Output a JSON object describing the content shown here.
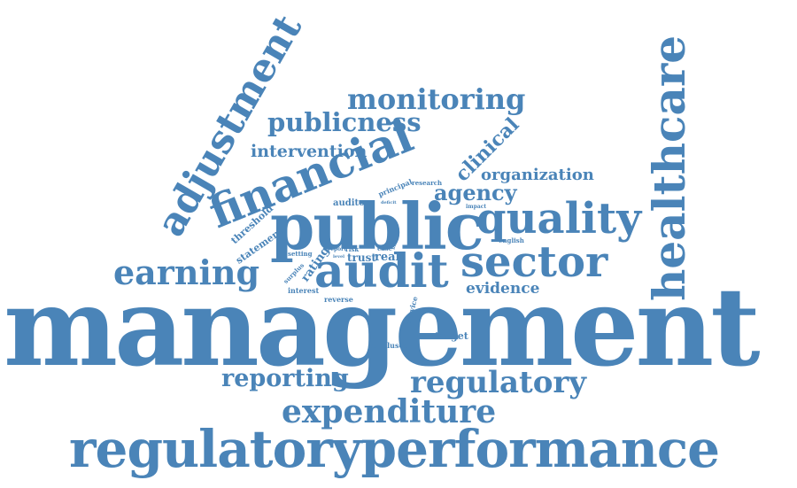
{
  "color": "#4a84b8",
  "words": [
    {
      "id": "management",
      "text": "management"
    },
    {
      "id": "regulatoryperformance",
      "text": "regulatoryperformance"
    },
    {
      "id": "public",
      "text": "public"
    },
    {
      "id": "financial",
      "text": "financial"
    },
    {
      "id": "healthcare",
      "text": "healthcare"
    },
    {
      "id": "adjustment",
      "text": "adjustment"
    },
    {
      "id": "audit",
      "text": "audit"
    },
    {
      "id": "sector",
      "text": "sector"
    },
    {
      "id": "quality",
      "text": "quality"
    },
    {
      "id": "earning",
      "text": "earning"
    },
    {
      "id": "expenditure",
      "text": "expenditure"
    },
    {
      "id": "regulatory",
      "text": "regulatory"
    },
    {
      "id": "reporting",
      "text": "reporting"
    },
    {
      "id": "monitoring",
      "text": "monitoring"
    },
    {
      "id": "publicness",
      "text": "publicness"
    },
    {
      "id": "intervention",
      "text": "intervention"
    },
    {
      "id": "clinical",
      "text": "clinical"
    },
    {
      "id": "organization",
      "text": "organization"
    },
    {
      "id": "agency",
      "text": "agency"
    },
    {
      "id": "evidence",
      "text": "evidence"
    },
    {
      "id": "auditor",
      "text": "auditor"
    },
    {
      "id": "threshold",
      "text": "threshold"
    },
    {
      "id": "statement",
      "text": "statement"
    },
    {
      "id": "rating",
      "text": "rating"
    },
    {
      "id": "trust",
      "text": "trust"
    },
    {
      "id": "real",
      "text": "real"
    },
    {
      "id": "risk",
      "text": "risk"
    },
    {
      "id": "report",
      "text": "report"
    },
    {
      "id": "level",
      "text": "level"
    },
    {
      "id": "case",
      "text": "case"
    },
    {
      "id": "setting",
      "text": "setting"
    },
    {
      "id": "surplus",
      "text": "surplus"
    },
    {
      "id": "interest",
      "text": "interest"
    },
    {
      "id": "reverse",
      "text": "reverse"
    },
    {
      "id": "principal",
      "text": "principal"
    },
    {
      "id": "research",
      "text": "research"
    },
    {
      "id": "deficit",
      "text": "deficit"
    },
    {
      "id": "impact",
      "text": "impact"
    },
    {
      "id": "bias",
      "text": "bias"
    },
    {
      "id": "english",
      "text": "english"
    },
    {
      "id": "service",
      "text": "service"
    },
    {
      "id": "target",
      "text": "target"
    },
    {
      "id": "surpluses",
      "text": "surpluses"
    }
  ]
}
